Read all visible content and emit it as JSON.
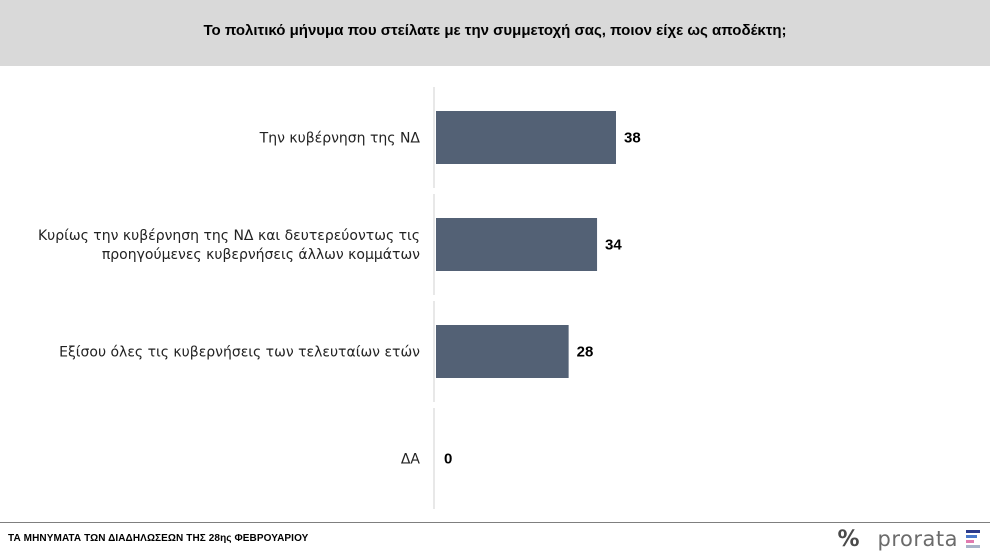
{
  "header": {
    "title": "Το πολιτικό μήνυμα που στείλατε με την συμμετοχή σας, ποιον είχε ως αποδέκτη;"
  },
  "chart_data": {
    "type": "bar",
    "orientation": "horizontal",
    "categories": [
      [
        "Την κυβέρνηση της ΝΔ"
      ],
      [
        "Κυρίως την κυβέρνηση της ΝΔ και δευτερεύοντως τις",
        "προηγούμενες κυβερνήσεις άλλων κομμάτων"
      ],
      [
        "Εξίσου όλες τις κυβερνήσεις των τελευταίων ετών"
      ],
      [
        "ΔΑ"
      ]
    ],
    "values": [
      38,
      34,
      28,
      0
    ],
    "bar_color": "#536175",
    "grid": false,
    "legend": "none"
  },
  "footer": {
    "caption": "ΤΑ ΜΗΝΥΜΑΤΑ ΤΩΝ ΔΙΑΔΗΛΩΣΕΩΝ ΤΗΣ 28ης ΦΕΒΡΟΥΑΡΙΟΥ"
  },
  "logo": {
    "symbol": "%",
    "wordmark": "prorata",
    "mark_colors": [
      "#2b3a8c",
      "#4a78c9",
      "#e07ab0",
      "#a7b3c9"
    ]
  }
}
